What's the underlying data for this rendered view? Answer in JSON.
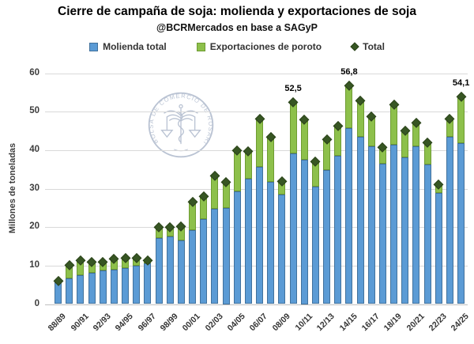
{
  "title": "Cierre de campaña de soja: molienda y exportaciones de soja",
  "subtitle": "@BCRMercados en base a SAGyP",
  "legend": {
    "items": [
      {
        "label": "Molienda total"
      },
      {
        "label": "Exportaciones de poroto"
      },
      {
        "label": "Total"
      }
    ]
  },
  "watermark_text": "BOLSA DE COMERCIO DE ROSARIO",
  "y_axis": {
    "title": "Millones de toneladas",
    "ticks": [
      0,
      10,
      20,
      30,
      40,
      50,
      60
    ]
  },
  "chart_data": {
    "type": "bar",
    "stacked": true,
    "grid": true,
    "legend_position": "top",
    "ylim": [
      0,
      60
    ],
    "x_tick_every": 2,
    "categories": [
      "88/89",
      "89/90",
      "90/91",
      "91/92",
      "92/93",
      "93/94",
      "94/95",
      "95/96",
      "96/97",
      "97/98",
      "98/99",
      "99/00",
      "00/01",
      "01/02",
      "02/03",
      "03/04",
      "04/05",
      "05/06",
      "06/07",
      "07/08",
      "08/09",
      "09/10",
      "10/11",
      "11/12",
      "12/13",
      "13/14",
      "14/15",
      "15/16",
      "16/17",
      "17/18",
      "18/19",
      "19/20",
      "20/21",
      "21/22",
      "22/23",
      "23/24",
      "24/25"
    ],
    "series": [
      {
        "name": "Molienda total",
        "color": "#5B9BD5",
        "stroke": "#41719C",
        "values": [
          5.6,
          6.7,
          7.6,
          8.2,
          8.7,
          9.0,
          9.4,
          9.9,
          10.5,
          17.2,
          17.6,
          16.6,
          19.3,
          22.1,
          24.7,
          25.0,
          29.4,
          32.6,
          35.8,
          31.8,
          28.5,
          39.2,
          37.5,
          30.6,
          34.9,
          38.5,
          45.7,
          43.5,
          41.1,
          36.5,
          41.4,
          38.2,
          41.1,
          36.3,
          29.0,
          43.6,
          41.8
        ]
      },
      {
        "name": "Exportaciones de poroto",
        "color": "#8DC04B",
        "stroke": "#6E9B32",
        "values": [
          0.4,
          3.4,
          3.9,
          2.9,
          2.3,
          2.8,
          2.7,
          2.2,
          0.9,
          2.8,
          2.5,
          3.6,
          7.3,
          6.0,
          8.7,
          6.8,
          10.6,
          7.2,
          12.5,
          11.7,
          3.5,
          13.3,
          10.5,
          6.5,
          8.1,
          7.9,
          11.1,
          9.5,
          7.8,
          4.3,
          10.5,
          6.9,
          6.1,
          5.8,
          2.1,
          4.6,
          12.3
        ]
      }
    ],
    "markers": {
      "name": "Total",
      "color": "#375623",
      "stroke": "#2B4319"
    },
    "totals": [
      6.0,
      10.1,
      11.5,
      11.1,
      11.0,
      11.8,
      12.1,
      12.1,
      11.4,
      20.0,
      20.1,
      20.2,
      26.6,
      28.1,
      33.4,
      31.8,
      40.0,
      39.8,
      48.3,
      43.5,
      32.0,
      52.5,
      48.0,
      37.1,
      43.0,
      46.4,
      56.8,
      53.0,
      48.9,
      40.8,
      51.9,
      45.1,
      47.2,
      42.1,
      31.1,
      48.2,
      54.1
    ],
    "annotations": [
      {
        "category": "09/10",
        "text": "52,5"
      },
      {
        "category": "14/15",
        "text": "56,8"
      },
      {
        "category": "24/25",
        "text": "54,1"
      }
    ]
  },
  "colors": {
    "gridline": "#D9D9D9",
    "axis_line": "#BFBFBF",
    "tick_text": "#3d3d3d",
    "watermark": "#A9B5C9"
  }
}
